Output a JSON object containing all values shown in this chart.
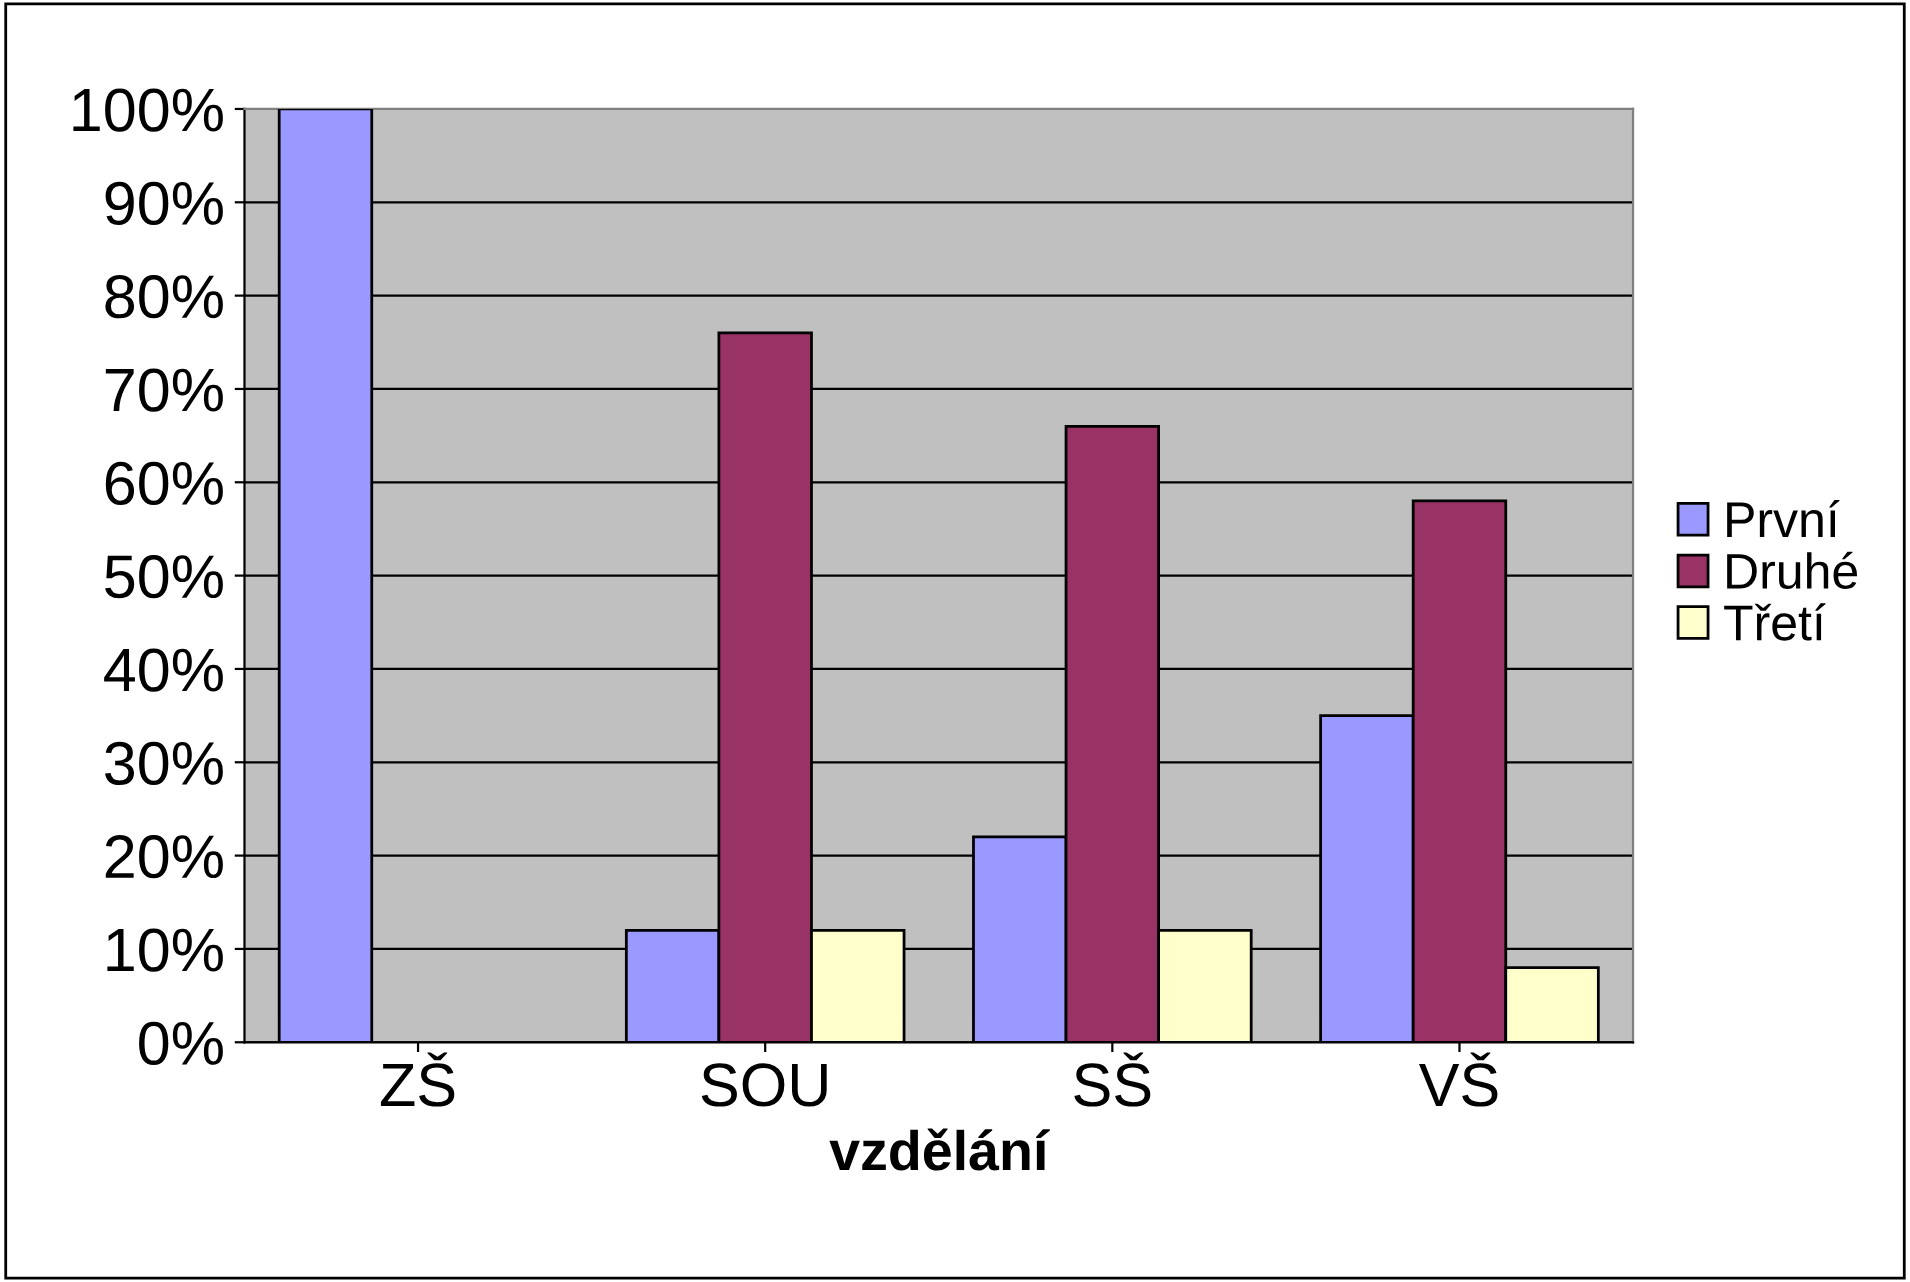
{
  "chart_data": {
    "type": "bar",
    "xlabel": "vzdělání",
    "categories": [
      "ZŠ",
      "SOU",
      "SŠ",
      "VŠ"
    ],
    "series": [
      {
        "name": "První",
        "color": "#9999ff",
        "values": [
          100,
          12,
          22,
          35
        ]
      },
      {
        "name": "Druhé",
        "color": "#993366",
        "values": [
          null,
          76,
          66,
          58
        ]
      },
      {
        "name": "Třetí",
        "color": "#ffffcc",
        "values": [
          null,
          12,
          12,
          8
        ]
      }
    ],
    "ylim": [
      0,
      100
    ],
    "yticks": [
      {
        "value": 0,
        "label": "0%"
      },
      {
        "value": 10,
        "label": "10%"
      },
      {
        "value": 20,
        "label": "20%"
      },
      {
        "value": 30,
        "label": "30%"
      },
      {
        "value": 40,
        "label": "40%"
      },
      {
        "value": 50,
        "label": "50%"
      },
      {
        "value": 60,
        "label": "60%"
      },
      {
        "value": 70,
        "label": "70%"
      },
      {
        "value": 80,
        "label": "80%"
      },
      {
        "value": 90,
        "label": "90%"
      },
      {
        "value": 100,
        "label": "100%"
      }
    ],
    "grid": "y",
    "legend": "right"
  }
}
